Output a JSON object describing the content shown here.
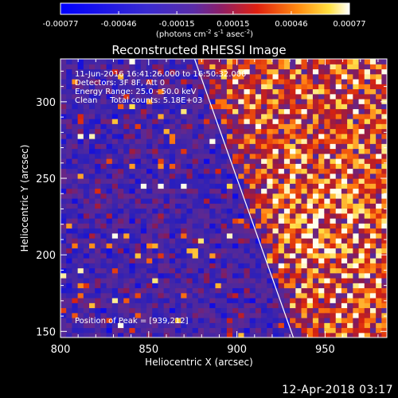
{
  "chart_data": {
    "type": "heatmap",
    "title": "Reconstructed RHESSI Image",
    "xlabel": "Heliocentric X (arcsec)",
    "ylabel": "Heliocentric Y (arcsec)",
    "xlim": [
      800,
      985
    ],
    "ylim": [
      146,
      328
    ],
    "x_ticks": [
      800,
      850,
      900,
      950
    ],
    "y_ticks": [
      150,
      200,
      250,
      300
    ],
    "x_tick_labels": [
      "800",
      "850",
      "900",
      "950"
    ],
    "y_tick_labels": [
      "150",
      "200",
      "250",
      "300"
    ],
    "colorbar": {
      "range": [
        -0.00077,
        0.00077
      ],
      "tick_values": [
        -0.00077,
        -0.00046,
        -0.00015,
        0.00015,
        0.00046,
        0.00077
      ],
      "tick_labels": [
        "-0.00077",
        "-0.00046",
        "-0.00015",
        "0.00015",
        "0.00046",
        "0.00077"
      ],
      "units_prefix": "(photons cm",
      "units_exp1": "-2",
      "units_mid1": " s",
      "units_exp2": "-1",
      "units_mid2": " asec",
      "units_exp3": "-2",
      "units_suffix": ")"
    },
    "annotations": [
      "11-Jun-2016 16:41:26.000 to 16:50:32.000",
      "Detectors: 3F 8F, Att 0",
      "Energy Range: 25.0 - 50.0 keV",
      "Clean     Total counts: 5.18E+03"
    ],
    "peak_label": "Position of Peak = [939,212]",
    "peak": [
      939,
      212
    ],
    "limb_line": [
      [
        876,
        328
      ],
      [
        932,
        146
      ]
    ],
    "grid": false,
    "legend": "none"
  },
  "footer": {
    "timestamp": "12-Apr-2018 03:17"
  },
  "colors": {
    "background": "#000000",
    "text": "#ffffff",
    "low": "#0000ff",
    "mid": "#6030a0",
    "high": "#ffffff"
  }
}
